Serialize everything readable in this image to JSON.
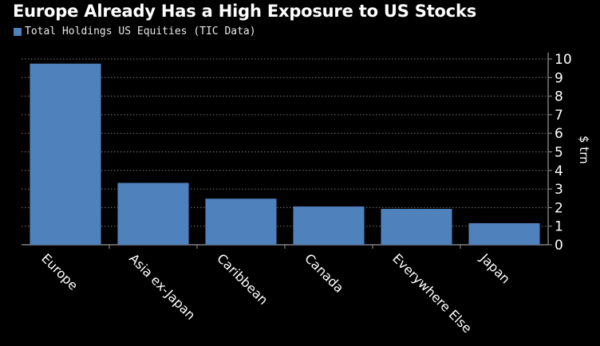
{
  "chart_data": {
    "type": "bar",
    "title": "Europe Already Has a High Exposure to US Stocks",
    "legend": [
      "Total Holdings US Equities (TIC Data)"
    ],
    "legend_position": "top-left",
    "categories": [
      "Europe",
      "Asia ex-Japan",
      "Caribbean",
      "Canada",
      "Everywhere Else",
      "Japan"
    ],
    "values": [
      9.75,
      3.33,
      2.48,
      2.06,
      1.93,
      1.16
    ],
    "xlabel": "",
    "ylabel": "$ trn",
    "ylim": [
      0,
      10
    ],
    "yticks": [
      "0",
      "1",
      "2",
      "3",
      "4",
      "5",
      "6",
      "7",
      "8",
      "9",
      "10"
    ],
    "grid": true,
    "colors": {
      "bar": "#4f81bd",
      "background": "#000000"
    }
  }
}
